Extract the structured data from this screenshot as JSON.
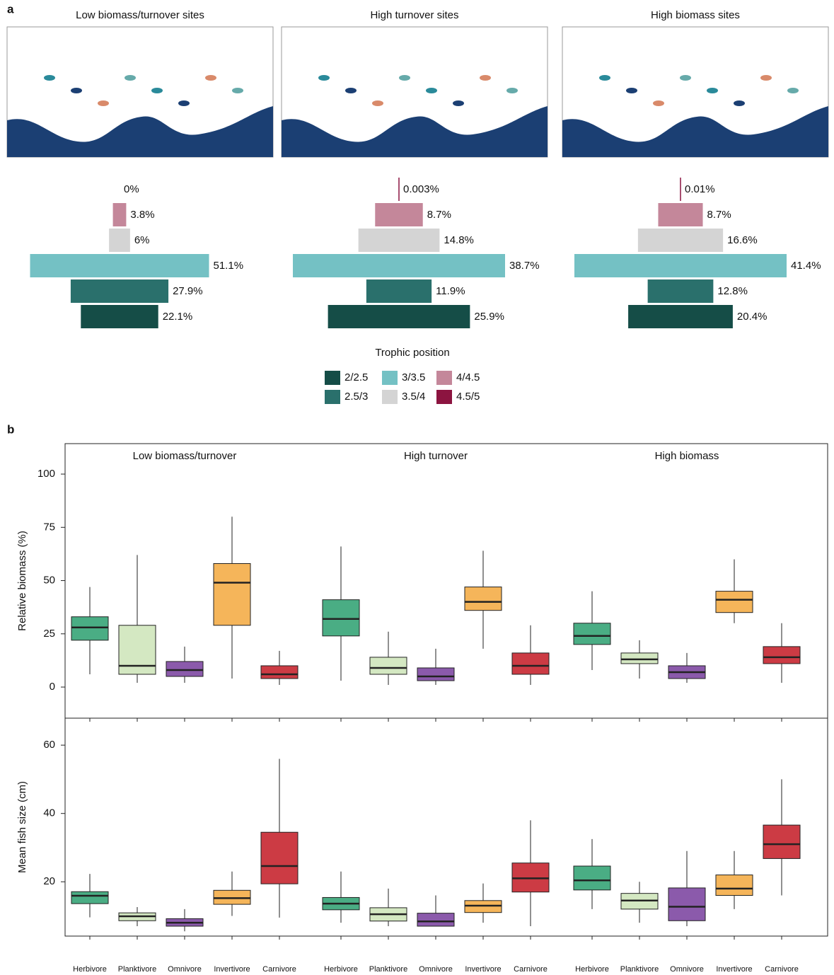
{
  "panel_labels": [
    "a",
    "b"
  ],
  "trophic_legend": {
    "title": "Trophic position",
    "categories": [
      "2/2.5",
      "2.5/3",
      "3/3.5",
      "3.5/4",
      "4/4.5",
      "4.5/5"
    ],
    "colors": [
      "#154d47",
      "#2a706c",
      "#74c1c4",
      "#d4d4d4",
      "#c4879a",
      "#8c1440"
    ]
  },
  "chart_data": [
    {
      "type": "pyramid",
      "title": "Low biomass/turnover sites",
      "values": [
        22.1,
        27.9,
        51.1,
        6,
        3.8,
        0
      ],
      "value_labels": [
        "22.1%",
        "27.9%",
        "51.1%",
        "6%",
        "3.8%",
        "0%"
      ]
    },
    {
      "type": "pyramid",
      "title": "High turnover sites",
      "values": [
        25.9,
        11.9,
        38.7,
        14.8,
        8.7,
        0.003
      ],
      "value_labels": [
        "25.9%",
        "11.9%",
        "38.7%",
        "14.8%",
        "8.7%",
        "0.003%"
      ]
    },
    {
      "type": "pyramid",
      "title": "High biomass sites",
      "values": [
        20.4,
        12.8,
        41.4,
        16.6,
        8.7,
        0.01
      ],
      "value_labels": [
        "20.4%",
        "12.8%",
        "41.4%",
        "16.6%",
        "8.7%",
        "0.01%"
      ]
    },
    {
      "type": "box",
      "ylabel": "Relative biomass (%)",
      "ylim": [
        -14.6,
        114.3
      ],
      "yticks": [
        0,
        25,
        50,
        75,
        100
      ],
      "colors": [
        "#4aad84",
        "#d4e8c2",
        "#8b5aab",
        "#f5b55a",
        "#cc3b44"
      ],
      "series": [
        {
          "name": "Low biomass/turnover",
          "values": [
            [
              6,
              22,
              28,
              33,
              47
            ],
            [
              2,
              6,
              10,
              29,
              62
            ],
            [
              2,
              5,
              8,
              12,
              19
            ],
            [
              4,
              29,
              49,
              58,
              80
            ],
            [
              1,
              4,
              6,
              10,
              17
            ]
          ]
        },
        {
          "name": "High turnover",
          "values": [
            [
              3,
              24,
              32,
              41,
              66
            ],
            [
              1,
              6,
              9,
              14,
              26
            ],
            [
              1,
              3,
              5,
              9,
              18
            ],
            [
              18,
              36,
              40,
              47,
              64
            ],
            [
              1,
              6,
              10,
              16,
              29
            ]
          ]
        },
        {
          "name": "High biomass",
          "values": [
            [
              8,
              20,
              24,
              30,
              45
            ],
            [
              4,
              11,
              13,
              16,
              22
            ],
            [
              2,
              4,
              7,
              10,
              16
            ],
            [
              30,
              35,
              41,
              45,
              60
            ],
            [
              2,
              11,
              14,
              19,
              30
            ]
          ]
        }
      ]
    },
    {
      "type": "box",
      "ylabel": "Mean fish size (cm)",
      "ylim": [
        4.1,
        67.9
      ],
      "yticks": [
        20,
        40,
        60
      ],
      "categories": [
        "Herbivore",
        "Planktivore",
        "Omnivore",
        "Invertivore",
        "Carnivore"
      ],
      "colors": [
        "#4aad84",
        "#d4e8c2",
        "#8b5aab",
        "#f5b55a",
        "#cc3b44"
      ],
      "series": [
        {
          "values": [
            [
              9.6,
              13.6,
              15.9,
              17.1,
              22.3
            ],
            [
              7,
              8.6,
              9.9,
              10.9,
              12.6
            ],
            [
              5.5,
              7,
              8,
              9.2,
              12
            ],
            [
              10,
              13.4,
              15.2,
              17.5,
              23
            ],
            [
              9.5,
              19.4,
              24.6,
              34.5,
              56
            ]
          ]
        },
        {
          "values": [
            [
              8,
              11.8,
              13.6,
              15.4,
              23
            ],
            [
              7,
              8.5,
              10.5,
              12.4,
              18
            ],
            [
              7,
              7,
              8.4,
              10.8,
              16
            ],
            [
              8,
              11,
              13,
              14.5,
              19.5
            ],
            [
              7,
              17,
              21,
              25.5,
              38
            ]
          ]
        },
        {
          "values": [
            [
              12,
              17.6,
              20.4,
              24.6,
              32.5
            ],
            [
              8,
              12,
              14.5,
              16.6,
              20
            ],
            [
              7,
              8.6,
              12.7,
              18.2,
              29
            ],
            [
              12,
              16,
              18,
              22,
              29
            ],
            [
              16,
              26.8,
              31,
              36.6,
              50
            ]
          ]
        }
      ]
    }
  ]
}
